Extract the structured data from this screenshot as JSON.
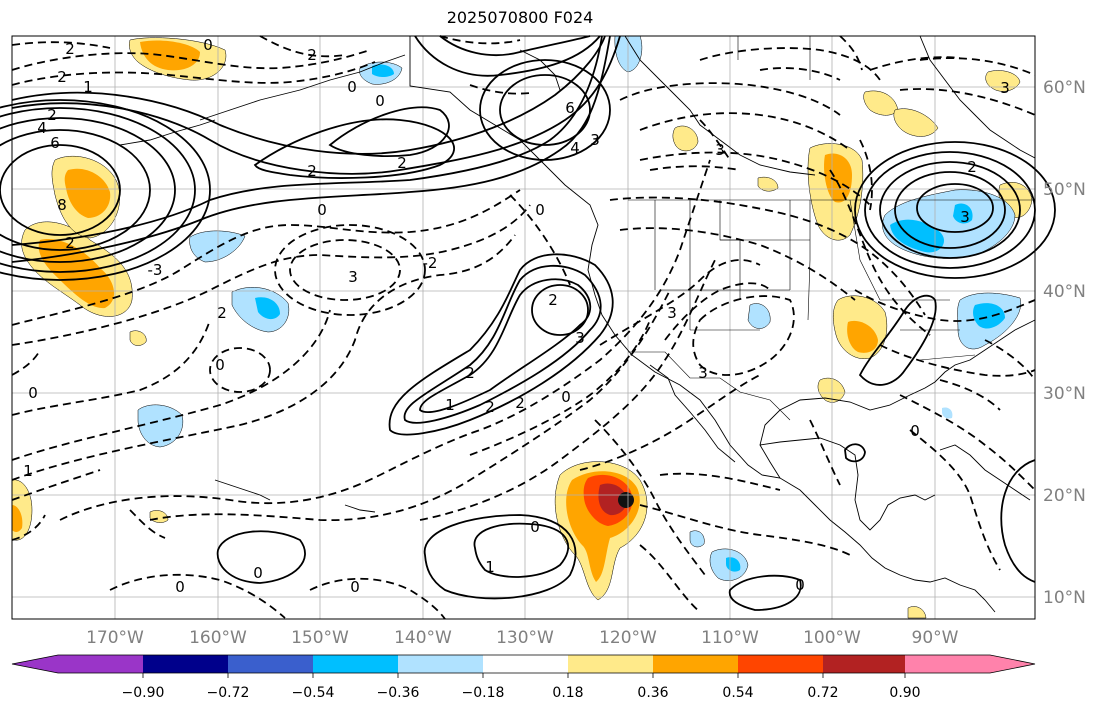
{
  "title": "2025070800 F024",
  "map": {
    "longitude_labels": [
      "170°W",
      "160°W",
      "150°W",
      "140°W",
      "130°W",
      "120°W",
      "110°W",
      "100°W",
      "90°W"
    ],
    "latitude_labels": [
      "60°N",
      "50°N",
      "40°N",
      "30°N",
      "20°N",
      "10°N"
    ],
    "contour_labels": [
      "2",
      "2",
      "1",
      "4",
      "6",
      "8",
      "2",
      "2",
      "2",
      "0",
      "0",
      "0",
      "2",
      "6",
      "3",
      "4",
      "0",
      "3",
      "3",
      "2",
      "0",
      "-2",
      "-3",
      "2",
      "2",
      "3",
      "2",
      "1",
      "2",
      "2",
      "0",
      "0",
      "0",
      "3",
      "3",
      "0",
      "0",
      "1",
      "0",
      "0",
      "1",
      "0",
      "0",
      "2",
      "3",
      "3"
    ]
  },
  "colorbar": {
    "tick_labels": [
      "−0.90",
      "−0.72",
      "−0.54",
      "−0.36",
      "−0.18",
      "0.18",
      "0.36",
      "0.54",
      "0.72",
      "0.90"
    ],
    "colors": [
      "#9a35c8",
      "#00008b",
      "#3a5fcd",
      "#00bfff",
      "#b0e2ff",
      "#ffffff",
      "#ffea8a",
      "#ffa500",
      "#ff4500",
      "#b22222",
      "#ff82ab"
    ]
  }
}
